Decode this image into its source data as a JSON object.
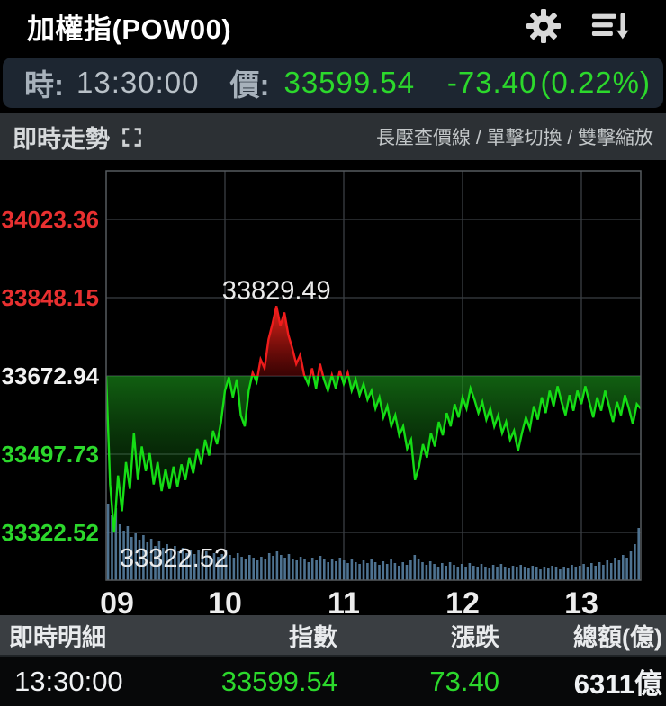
{
  "header": {
    "title": "加權指(POW00)",
    "icons": {
      "settings": "gear-icon",
      "sort": "sort-descending-icon"
    }
  },
  "quote": {
    "time_label": "時:",
    "time": "13:30:00",
    "price_label": "價:",
    "price": "33599.54",
    "change": "-73.40",
    "change_pct": "(0.22%)",
    "value_color": "#2cd82c"
  },
  "chart_header": {
    "title": "即時走勢",
    "expand_icon": "fullscreen-expand-icon",
    "hint": "長壓查價線 / 單擊切換 / 雙擊縮放"
  },
  "chart_data": {
    "type": "line",
    "title": "即時走勢",
    "x_tick_labels": [
      "09",
      "10",
      "11",
      "12",
      "13"
    ],
    "x_tick_minutes": [
      0,
      60,
      120,
      180,
      240
    ],
    "x_minutes_range": [
      0,
      270
    ],
    "reference_price": 33672.94,
    "grid_step_points": 175.21,
    "y_axis": [
      {
        "label": "34023.36",
        "value": 34023.36,
        "color": "#e83030"
      },
      {
        "label": "33848.15",
        "value": 33848.15,
        "color": "#e83030"
      },
      {
        "label": "33672.94",
        "value": 33672.94,
        "color": "#f2f2f2"
      },
      {
        "label": "33497.73",
        "value": 33497.73,
        "color": "#2cd82c"
      },
      {
        "label": "33322.52",
        "value": 33322.52,
        "color": "#2cd82c"
      }
    ],
    "annotations": [
      {
        "text": "33829.49",
        "minute": 86,
        "price": 33829.49,
        "position": "above"
      },
      {
        "text": "33322.52",
        "minute": 5,
        "price": 33322.52,
        "position": "below-right"
      }
    ],
    "high": 33829.49,
    "low": 33322.52,
    "close": 33599.54,
    "series": [
      {
        "name": "price",
        "interval_minutes": 2,
        "values": [
          33672,
          33430,
          33322.52,
          33450,
          33370,
          33480,
          33420,
          33545,
          33440,
          33515,
          33460,
          33500,
          33430,
          33480,
          33415,
          33465,
          33420,
          33470,
          33425,
          33475,
          33440,
          33490,
          33455,
          33510,
          33475,
          33530,
          33495,
          33550,
          33520,
          33570,
          33640,
          33670,
          33625,
          33665,
          33585,
          33560,
          33640,
          33680,
          33660,
          33710,
          33690,
          33755,
          33790,
          33829.49,
          33785,
          33815,
          33765,
          33735,
          33700,
          33720,
          33675,
          33655,
          33690,
          33645,
          33700,
          33665,
          33640,
          33675,
          33645,
          33685,
          33655,
          33680,
          33640,
          33665,
          33630,
          33655,
          33620,
          33640,
          33600,
          33625,
          33580,
          33605,
          33560,
          33585,
          33540,
          33560,
          33510,
          33530,
          33440,
          33470,
          33520,
          33490,
          33545,
          33515,
          33570,
          33540,
          33590,
          33560,
          33610,
          33580,
          33625,
          33600,
          33645,
          33620,
          33590,
          33615,
          33575,
          33600,
          33560,
          33585,
          33545,
          33570,
          33530,
          33550,
          33505,
          33545,
          33580,
          33555,
          33605,
          33575,
          33625,
          33590,
          33640,
          33605,
          33650,
          33615,
          33585,
          33630,
          33595,
          33640,
          33610,
          33650,
          33615,
          33580,
          33625,
          33595,
          33640,
          33605,
          33570,
          33615,
          33585,
          33630,
          33600,
          33565,
          33610,
          33599.54
        ]
      }
    ],
    "volume_bars": [
      85,
      72,
      80,
      62,
      55,
      60,
      48,
      52,
      45,
      50,
      42,
      46,
      38,
      44,
      36,
      40,
      34,
      38,
      32,
      36,
      30,
      34,
      29,
      33,
      28,
      32,
      27,
      30,
      26,
      29,
      34,
      28,
      25,
      30,
      26,
      24,
      28,
      25,
      22,
      26,
      24,
      30,
      27,
      32,
      28,
      25,
      29,
      24,
      22,
      26,
      23,
      20,
      25,
      22,
      27,
      23,
      20,
      24,
      21,
      25,
      22,
      19,
      23,
      20,
      18,
      22,
      19,
      24,
      20,
      17,
      21,
      18,
      23,
      19,
      16,
      20,
      17,
      22,
      28,
      24,
      20,
      17,
      21,
      18,
      15,
      19,
      16,
      20,
      17,
      14,
      18,
      15,
      19,
      16,
      14,
      18,
      15,
      13,
      17,
      14,
      18,
      15,
      13,
      16,
      14,
      17,
      15,
      13,
      16,
      14,
      12,
      15,
      13,
      16,
      14,
      12,
      15,
      13,
      17,
      14,
      16,
      18,
      15,
      19,
      16,
      20,
      17,
      22,
      19,
      25,
      22,
      28,
      25,
      32,
      40,
      58
    ],
    "colors": {
      "up": "#ef1c1c",
      "down": "#15dd15",
      "volume": "#527898",
      "grid": "#3a3f43",
      "border": "#565b5f",
      "annotation": "#ebebeb",
      "x_label": "#ededed"
    },
    "legend": "none",
    "grid": true
  },
  "table": {
    "headers": [
      "即時明細",
      "指數",
      "漲跌",
      "總額(億)"
    ],
    "rows": [
      {
        "time": "13:30:00",
        "index": "33599.54",
        "change": "73.40",
        "total": "6311億",
        "index_color": "#2cd82c",
        "change_color": "#2cd82c"
      }
    ]
  }
}
